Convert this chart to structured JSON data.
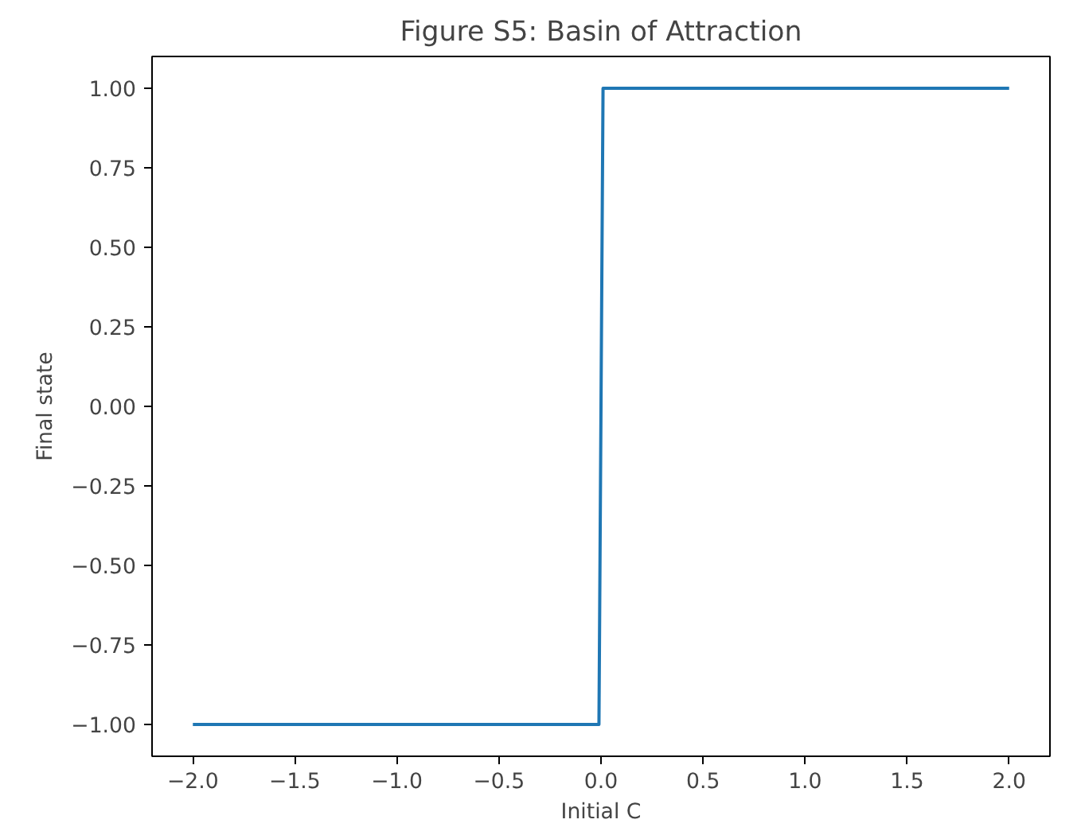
{
  "chart_data": {
    "type": "line",
    "title": "Figure S5: Basin of Attraction",
    "xlabel": "Initial C",
    "ylabel": "Final state",
    "x": [
      -2.0,
      -0.01,
      0.01,
      2.0
    ],
    "series": [
      {
        "color": "#1f77b4",
        "values": [
          -1.0,
          -1.0,
          1.0,
          1.0
        ]
      }
    ],
    "xlim": [
      -2.2,
      2.2
    ],
    "xticks": [
      {
        "value": -2.0,
        "label": "−2.0"
      },
      {
        "value": -1.5,
        "label": "−1.5"
      },
      {
        "value": -1.0,
        "label": "−1.0"
      },
      {
        "value": -0.5,
        "label": "−0.5"
      },
      {
        "value": 0.0,
        "label": "0.0"
      },
      {
        "value": 0.5,
        "label": "0.5"
      },
      {
        "value": 1.0,
        "label": "1.0"
      },
      {
        "value": 1.5,
        "label": "1.5"
      },
      {
        "value": 2.0,
        "label": "2.0"
      }
    ],
    "ylim": [
      -1.1,
      1.1
    ],
    "yticks": [
      {
        "value": -1.0,
        "label": "−1.00"
      },
      {
        "value": -0.75,
        "label": "−0.75"
      },
      {
        "value": -0.5,
        "label": "−0.50"
      },
      {
        "value": -0.25,
        "label": "−0.25"
      },
      {
        "value": 0.0,
        "label": "0.00"
      },
      {
        "value": 0.25,
        "label": "0.25"
      },
      {
        "value": 0.5,
        "label": "0.50"
      },
      {
        "value": 0.75,
        "label": "0.75"
      },
      {
        "value": 1.0,
        "label": "1.00"
      }
    ],
    "grid": false,
    "line_style": "solid"
  }
}
